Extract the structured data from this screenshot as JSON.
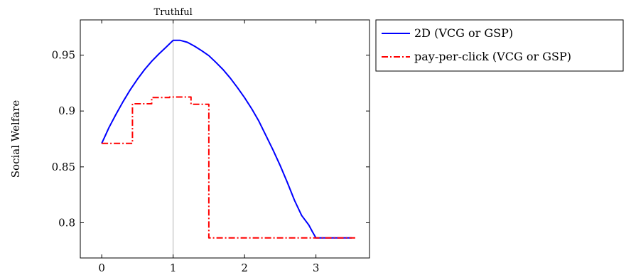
{
  "chart_data": {
    "type": "line",
    "title": "",
    "xlabel": "",
    "ylabel": "Social Welfare",
    "xlim": [
      -0.3,
      3.75
    ],
    "ylim": [
      0.7685,
      0.9815
    ],
    "xticks": [
      0,
      1,
      2,
      3
    ],
    "yticks": [
      0.8,
      0.85,
      0.9,
      0.95
    ],
    "xtick_labels": [
      "0",
      "1",
      "2",
      "3"
    ],
    "ytick_labels": [
      "0.8",
      "0.85",
      "0.9",
      "0.95"
    ],
    "grid": false,
    "annotations": [
      {
        "x": 1,
        "label": "Truthful",
        "kind": "vertical-line"
      }
    ],
    "legend_position": "outside-top-right",
    "series": [
      {
        "name": "2D (VCG or GSP)",
        "color": "#0000ff",
        "style": "solid",
        "x": [
          0,
          0.05,
          0.1,
          0.15,
          0.2,
          0.3,
          0.4,
          0.5,
          0.6,
          0.7,
          0.8,
          0.9,
          1.0,
          1.1,
          1.2,
          1.3,
          1.4,
          1.5,
          1.6,
          1.7,
          1.8,
          1.9,
          2.0,
          2.1,
          2.2,
          2.3,
          2.4,
          2.5,
          2.6,
          2.7,
          2.8,
          2.9,
          2.95,
          3.0,
          3.1,
          3.2,
          3.3,
          3.4,
          3.5
        ],
        "y": [
          0.871,
          0.878,
          0.885,
          0.891,
          0.897,
          0.9085,
          0.919,
          0.9285,
          0.937,
          0.9445,
          0.951,
          0.957,
          0.9632,
          0.9632,
          0.9615,
          0.958,
          0.954,
          0.9495,
          0.9435,
          0.937,
          0.9295,
          0.921,
          0.912,
          0.902,
          0.891,
          0.878,
          0.865,
          0.851,
          0.836,
          0.82,
          0.8065,
          0.798,
          0.792,
          0.7865,
          0.7865,
          0.7865,
          0.7865,
          0.7865,
          0.7865
        ]
      },
      {
        "name": "pay-per-click (VCG or GSP)",
        "color": "#ff0000",
        "style": "dash-dot",
        "step": true,
        "x": [
          0,
          0.43,
          0.43,
          0.7,
          0.7,
          0.95,
          0.95,
          1.25,
          1.25,
          1.5,
          1.5,
          3.55
        ],
        "y": [
          0.871,
          0.871,
          0.9065,
          0.9065,
          0.912,
          0.912,
          0.9125,
          0.9125,
          0.906,
          0.906,
          0.7865,
          0.7865
        ]
      }
    ]
  }
}
